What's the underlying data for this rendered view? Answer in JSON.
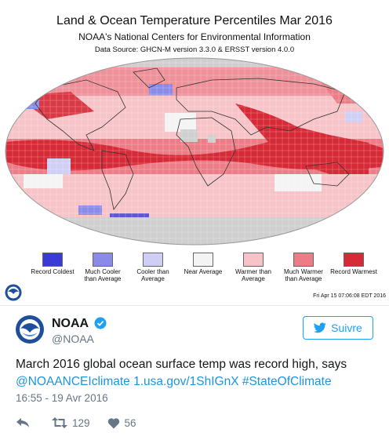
{
  "map": {
    "title": "Land & Ocean Temperature Percentiles Mar 2016",
    "subtitle": "NOAA's National Centers for Environmental Information",
    "source": "Data Source: GHCN-M version 3.3.0 & ERSST version 4.0.0",
    "timestamp": "Fri Apr 15 07:06:08 EDT 2016",
    "legend": [
      {
        "label": "Record Coldest",
        "color": "#3a3ad6"
      },
      {
        "label": "Much Cooler than Average",
        "color": "#8a8ae8"
      },
      {
        "label": "Cooler than Average",
        "color": "#cfcff6"
      },
      {
        "label": "Near Average",
        "color": "#f4f4f4"
      },
      {
        "label": "Warmer than Average",
        "color": "#f6c4c8"
      },
      {
        "label": "Much Warmer than Average",
        "color": "#ec7c86"
      },
      {
        "label": "Record Warmest",
        "color": "#d62a36"
      }
    ]
  },
  "tweet": {
    "user_name": "NOAA",
    "user_handle": "@NOAA",
    "follow_label": "Suivre",
    "text_plain": "March 2016 global ocean surface temp was record high, says",
    "link_1": "@NOAANCEIclimate",
    "link_2": "1.usa.gov/1ShIGnX",
    "link_3": "#StateOfClimate",
    "timestamp": "16:55 - 19 Avr 2016",
    "retweets": "129",
    "likes": "56"
  },
  "colors": {
    "brand_blue": "#1da1f2",
    "link_blue": "#1b95e0",
    "text_dark": "#14171a",
    "text_muted": "#657786"
  },
  "icons": {
    "reply": "reply-icon",
    "retweet": "retweet-icon",
    "like": "heart-icon",
    "verified": "verified-badge-icon",
    "twitter": "twitter-bird-icon"
  }
}
